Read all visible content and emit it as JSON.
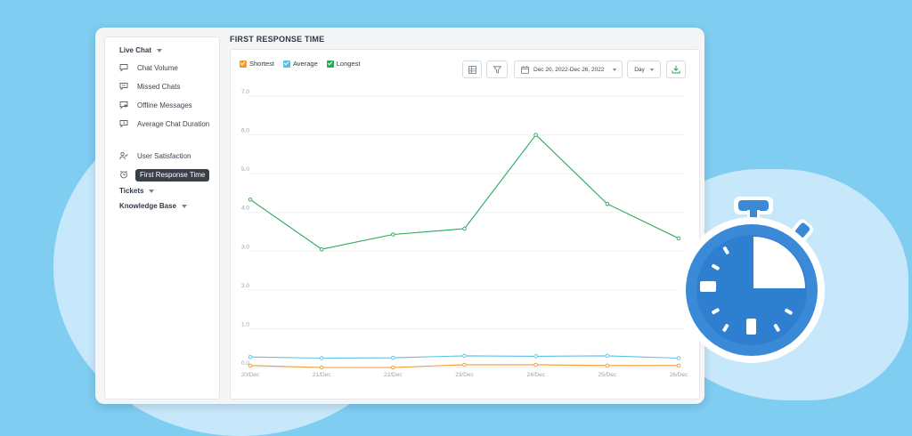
{
  "sidebar": {
    "live_chat_label": "Live Chat",
    "items": [
      {
        "label": "Chat Volume",
        "icon": "chat-bubble-icon"
      },
      {
        "label": "Missed Chats",
        "icon": "chat-missed-icon"
      },
      {
        "label": "Offline Messages",
        "icon": "offline-message-icon"
      },
      {
        "label": "Average Chat Duration",
        "icon": "duration-icon"
      },
      {
        "label": "User Satisfaction",
        "icon": "users-icon"
      },
      {
        "label": "First Response Time",
        "icon": "alarm-clock-icon"
      }
    ],
    "tickets_label": "Tickets",
    "knowledge_base_label": "Knowledge Base"
  },
  "panel": {
    "title": "FIRST RESPONSE TIME"
  },
  "toolbar": {
    "date_range": "Dec 20, 2022-Dec 26, 2022",
    "granularity": "Day",
    "icons": [
      "table-icon",
      "filter-icon",
      "calendar-icon",
      "download-icon"
    ]
  },
  "colors": {
    "shortest": "#f29a2e",
    "average": "#5bc0e8",
    "longest": "#27a85a",
    "accent_download": "#27a85a"
  },
  "chart_data": {
    "type": "line",
    "categories": [
      "20/Dec",
      "21/Dec",
      "22/Dec",
      "23/Dec",
      "24/Dec",
      "25/Dec",
      "26/Dec"
    ],
    "series": [
      {
        "name": "Shortest",
        "values": [
          0.05,
          0.0,
          0.0,
          0.07,
          0.07,
          0.05,
          0.05
        ]
      },
      {
        "name": "Average",
        "values": [
          0.27,
          0.24,
          0.25,
          0.3,
          0.29,
          0.3,
          0.24
        ]
      },
      {
        "name": "Longest",
        "values": [
          4.33,
          3.05,
          3.43,
          3.58,
          6.0,
          4.22,
          3.33
        ]
      }
    ],
    "yticks": [
      "0.0",
      "1.0",
      "2.0",
      "3.0",
      "4.0",
      "5.0",
      "6.0",
      "7.0"
    ],
    "ylim": [
      0,
      7
    ],
    "grid": true,
    "legend_position": "top-left"
  }
}
